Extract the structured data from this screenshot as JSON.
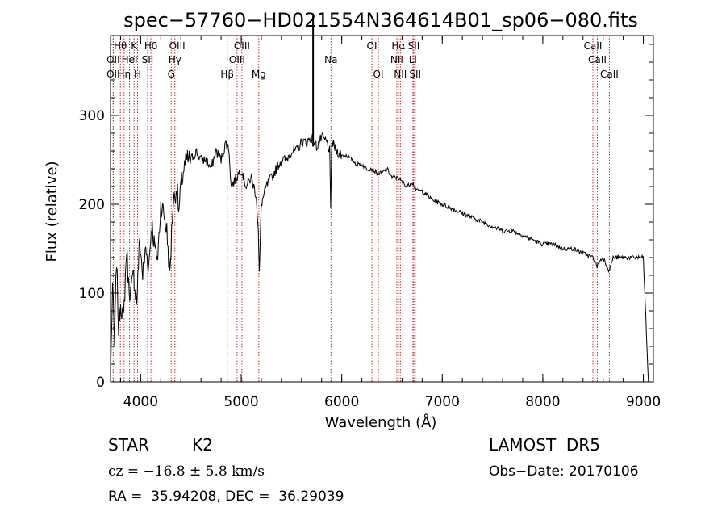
{
  "chart_data": {
    "type": "line",
    "title": "spec−57760−HD021554N364614B01_sp06−080.fits",
    "xlabel": "Wavelength (Å)",
    "ylabel": "Flux (relative)",
    "xlim": [
      3700,
      9100
    ],
    "ylim": [
      0,
      390
    ],
    "x_ticks": [
      4000,
      5000,
      6000,
      7000,
      8000,
      9000
    ],
    "x_tick_labels": [
      "4000",
      "5000",
      "6000",
      "7000",
      "8000",
      "9000"
    ],
    "y_ticks": [
      0,
      100,
      200,
      300
    ],
    "y_tick_labels": [
      "0",
      "100",
      "200",
      "300"
    ],
    "grid": false,
    "series": [
      {
        "x": [
          3700,
          3720,
          3740,
          3760,
          3780,
          3800,
          3830,
          3860,
          3880,
          3900,
          3930,
          3960,
          3990,
          4020,
          4050,
          4080,
          4110,
          4140,
          4170,
          4200,
          4230,
          4260,
          4290,
          4320,
          4340,
          4360,
          4380,
          4400,
          4430,
          4460,
          4500,
          4550,
          4600,
          4650,
          4700,
          4750,
          4800,
          4850,
          4880,
          4900,
          4950,
          5000,
          5050,
          5100,
          5150,
          5170,
          5180,
          5200,
          5250,
          5300,
          5350,
          5400,
          5450,
          5500,
          5550,
          5600,
          5650,
          5700,
          5750,
          5800,
          5850,
          5880,
          5890,
          5900,
          5950,
          6000,
          6050,
          6100,
          6150,
          6200,
          6250,
          6300,
          6350,
          6400,
          6450,
          6500,
          6560,
          6600,
          6650,
          6700,
          6750,
          6800,
          6900,
          7000,
          7100,
          7200,
          7300,
          7400,
          7500,
          7600,
          7700,
          7800,
          7900,
          8000,
          8100,
          8200,
          8300,
          8400,
          8500,
          8540,
          8560,
          8600,
          8660,
          8700,
          8800,
          8900,
          9000,
          9050
        ],
        "y": [
          0,
          110,
          40,
          140,
          60,
          90,
          70,
          150,
          110,
          100,
          120,
          90,
          160,
          120,
          150,
          130,
          180,
          150,
          140,
          200,
          190,
          170,
          120,
          200,
          210,
          220,
          190,
          220,
          240,
          250,
          250,
          260,
          250,
          250,
          240,
          260,
          250,
          270,
          260,
          220,
          230,
          240,
          220,
          230,
          210,
          170,
          120,
          200,
          220,
          230,
          240,
          250,
          250,
          260,
          260,
          270,
          270,
          275,
          265,
          275,
          270,
          260,
          190,
          270,
          260,
          255,
          255,
          250,
          245,
          245,
          240,
          240,
          235,
          235,
          240,
          230,
          230,
          225,
          220,
          225,
          215,
          215,
          205,
          200,
          195,
          190,
          185,
          180,
          175,
          170,
          170,
          165,
          160,
          155,
          155,
          150,
          150,
          145,
          140,
          130,
          135,
          140,
          125,
          140,
          140,
          140,
          140,
          0
        ]
      }
    ],
    "spike": {
      "x": 5715,
      "y": 415
    },
    "spectral_lines": [
      {
        "label": "Hθ",
        "x": 3798,
        "row": 1
      },
      {
        "label": "OII",
        "x": 3727,
        "row": 2
      },
      {
        "label": "OII",
        "x": 3727,
        "row": 3
      },
      {
        "label": "K",
        "x": 3934,
        "row": 1
      },
      {
        "label": "HeI",
        "x": 3889,
        "row": 2
      },
      {
        "label": "Hη",
        "x": 3835,
        "row": 3
      },
      {
        "label": "SII",
        "x": 4069,
        "row": 2
      },
      {
        "label": "H",
        "x": 3969,
        "row": 3
      },
      {
        "label": "Hδ",
        "x": 4102,
        "row": 1
      },
      {
        "label": "OIII",
        "x": 4363,
        "row": 1
      },
      {
        "label": "Hγ",
        "x": 4340,
        "row": 2
      },
      {
        "label": "G",
        "x": 4304,
        "row": 3
      },
      {
        "label": "Hβ",
        "x": 4861,
        "row": 3
      },
      {
        "label": "OIII",
        "x": 5007,
        "row": 1
      },
      {
        "label": "OIII",
        "x": 4959,
        "row": 2
      },
      {
        "label": "Mg",
        "x": 5175,
        "row": 3
      },
      {
        "label": "Na",
        "x": 5893,
        "row": 2
      },
      {
        "label": "OI",
        "x": 6300,
        "row": 1
      },
      {
        "label": "OI",
        "x": 6364,
        "row": 3
      },
      {
        "label": "Hα",
        "x": 6563,
        "row": 1
      },
      {
        "label": "SII",
        "x": 6717,
        "row": 1
      },
      {
        "label": "NII",
        "x": 6548,
        "row": 2
      },
      {
        "label": "Li",
        "x": 6708,
        "row": 2
      },
      {
        "label": "NII",
        "x": 6583,
        "row": 3
      },
      {
        "label": "SII",
        "x": 6731,
        "row": 3
      },
      {
        "label": "CaII",
        "x": 8498,
        "row": 1
      },
      {
        "label": "CaII",
        "x": 8542,
        "row": 2
      },
      {
        "label": "CaII",
        "x": 8662,
        "row": 3
      }
    ]
  },
  "footer": {
    "object_class": "STAR",
    "subclass": "K2",
    "survey": "LAMOST  DR5",
    "cz": "cz = −16.8 ± 5.8 km/s",
    "obs_date": "Obs−Date: 20170106",
    "coords": "RA =  35.94208, DEC =  36.29039"
  },
  "colors": {
    "line_marker": "#cc2222",
    "spectrum": "#000000",
    "axes": "#000000"
  }
}
